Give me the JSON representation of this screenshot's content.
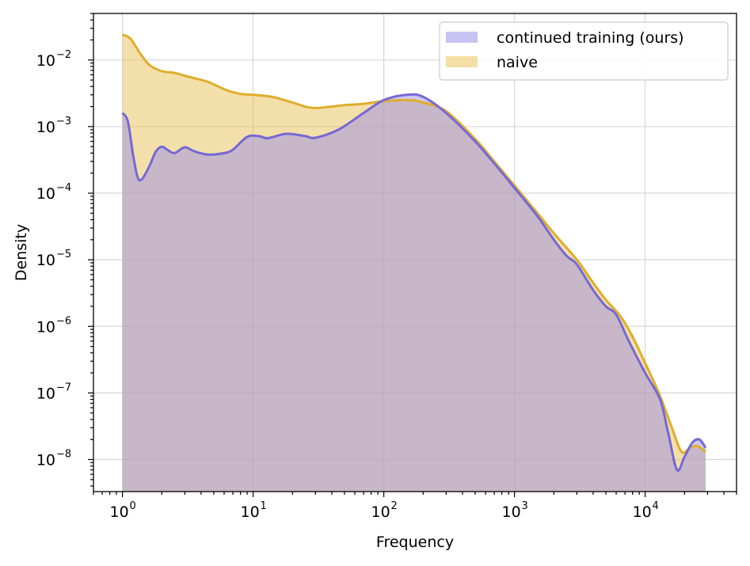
{
  "chart_data": {
    "type": "area",
    "xlabel": "Frequency",
    "ylabel": "Density",
    "xscale": "log",
    "yscale": "log",
    "xlim": [
      0.6,
      50000
    ],
    "ylim": [
      3.3e-09,
      0.05
    ],
    "grid": true,
    "legend_position": "top-right",
    "x_ticks": [
      {
        "value": 1,
        "base": "10",
        "exp": "0"
      },
      {
        "value": 10,
        "base": "10",
        "exp": "1"
      },
      {
        "value": 100,
        "base": "10",
        "exp": "2"
      },
      {
        "value": 1000,
        "base": "10",
        "exp": "3"
      },
      {
        "value": 10000,
        "base": "10",
        "exp": "4"
      }
    ],
    "y_ticks": [
      {
        "value": 1e-08,
        "base": "10",
        "exp": "−8"
      },
      {
        "value": 1e-07,
        "base": "10",
        "exp": "−7"
      },
      {
        "value": 1e-06,
        "base": "10",
        "exp": "−6"
      },
      {
        "value": 1e-05,
        "base": "10",
        "exp": "−5"
      },
      {
        "value": 0.0001,
        "base": "10",
        "exp": "−4"
      },
      {
        "value": 0.001,
        "base": "10",
        "exp": "−3"
      },
      {
        "value": 0.01,
        "base": "10",
        "exp": "−2"
      }
    ],
    "series": [
      {
        "name": "naive",
        "line_color": "#e0ad2b",
        "fill_color": "#e8c055",
        "fill_opacity": 0.5,
        "points": [
          [
            1.0,
            0.024
          ],
          [
            1.15,
            0.021
          ],
          [
            1.35,
            0.013
          ],
          [
            1.6,
            0.0085
          ],
          [
            2.0,
            0.0068
          ],
          [
            2.5,
            0.0064
          ],
          [
            3.2,
            0.0056
          ],
          [
            4.5,
            0.0047
          ],
          [
            6.3,
            0.0035
          ],
          [
            8.0,
            0.0031
          ],
          [
            10,
            0.003
          ],
          [
            14,
            0.0028
          ],
          [
            20,
            0.0023
          ],
          [
            25,
            0.002
          ],
          [
            30,
            0.0019
          ],
          [
            40,
            0.002
          ],
          [
            50,
            0.0021
          ],
          [
            70,
            0.0022
          ],
          [
            100,
            0.0024
          ],
          [
            150,
            0.0025
          ],
          [
            200,
            0.0023
          ],
          [
            300,
            0.0017
          ],
          [
            500,
            0.00065
          ],
          [
            700,
            0.0003
          ],
          [
            1000,
            0.00013
          ],
          [
            1500,
            5e-05
          ],
          [
            2000,
            2.5e-05
          ],
          [
            3000,
            1e-05
          ],
          [
            4000,
            4.5e-06
          ],
          [
            5000,
            2.5e-06
          ],
          [
            6500,
            1.4e-06
          ],
          [
            8000,
            7e-07
          ],
          [
            10000,
            2.8e-07
          ],
          [
            13000,
            9e-08
          ],
          [
            16000,
            3e-08
          ],
          [
            19000,
            1.3e-08
          ],
          [
            22000,
            1.5e-08
          ],
          [
            25000,
            1.6e-08
          ],
          [
            29000,
            1.3e-08
          ]
        ]
      },
      {
        "name": "continued training (ours)",
        "line_color": "#7468d6",
        "fill_color": "#9b8fe8",
        "fill_opacity": 0.5,
        "points": [
          [
            1.0,
            0.0016
          ],
          [
            1.1,
            0.0012
          ],
          [
            1.2,
            0.0004
          ],
          [
            1.3,
            0.00018
          ],
          [
            1.4,
            0.00016
          ],
          [
            1.6,
            0.00025
          ],
          [
            1.8,
            0.00042
          ],
          [
            2.0,
            0.0005
          ],
          [
            2.2,
            0.00045
          ],
          [
            2.5,
            0.0004
          ],
          [
            3.0,
            0.00049
          ],
          [
            3.5,
            0.00043
          ],
          [
            4.5,
            0.00038
          ],
          [
            6.0,
            0.0004
          ],
          [
            7.0,
            0.00045
          ],
          [
            9.0,
            0.0007
          ],
          [
            11,
            0.00072
          ],
          [
            13,
            0.00067
          ],
          [
            18,
            0.00078
          ],
          [
            25,
            0.00072
          ],
          [
            30,
            0.00068
          ],
          [
            45,
            0.0009
          ],
          [
            70,
            0.0016
          ],
          [
            100,
            0.0025
          ],
          [
            150,
            0.003
          ],
          [
            200,
            0.0028
          ],
          [
            300,
            0.0016
          ],
          [
            500,
            0.0006
          ],
          [
            700,
            0.00028
          ],
          [
            1000,
            0.00012
          ],
          [
            1500,
            4.5e-05
          ],
          [
            2000,
            2e-05
          ],
          [
            2500,
            1.15e-05
          ],
          [
            3000,
            8.5e-06
          ],
          [
            4000,
            3.5e-06
          ],
          [
            5000,
            2e-06
          ],
          [
            6000,
            1.5e-06
          ],
          [
            7500,
            6e-07
          ],
          [
            10000,
            2e-07
          ],
          [
            13000,
            8e-08
          ],
          [
            15000,
            2.5e-08
          ],
          [
            17500,
            7e-09
          ],
          [
            20000,
            1.1e-08
          ],
          [
            23000,
            1.8e-08
          ],
          [
            26000,
            2e-08
          ],
          [
            29000,
            1.5e-08
          ]
        ]
      }
    ],
    "legend": [
      {
        "label": "continued training (ours)",
        "swatch_color": "#c6c3f3"
      },
      {
        "label": "naive",
        "swatch_color": "#f3dfa6"
      }
    ]
  }
}
